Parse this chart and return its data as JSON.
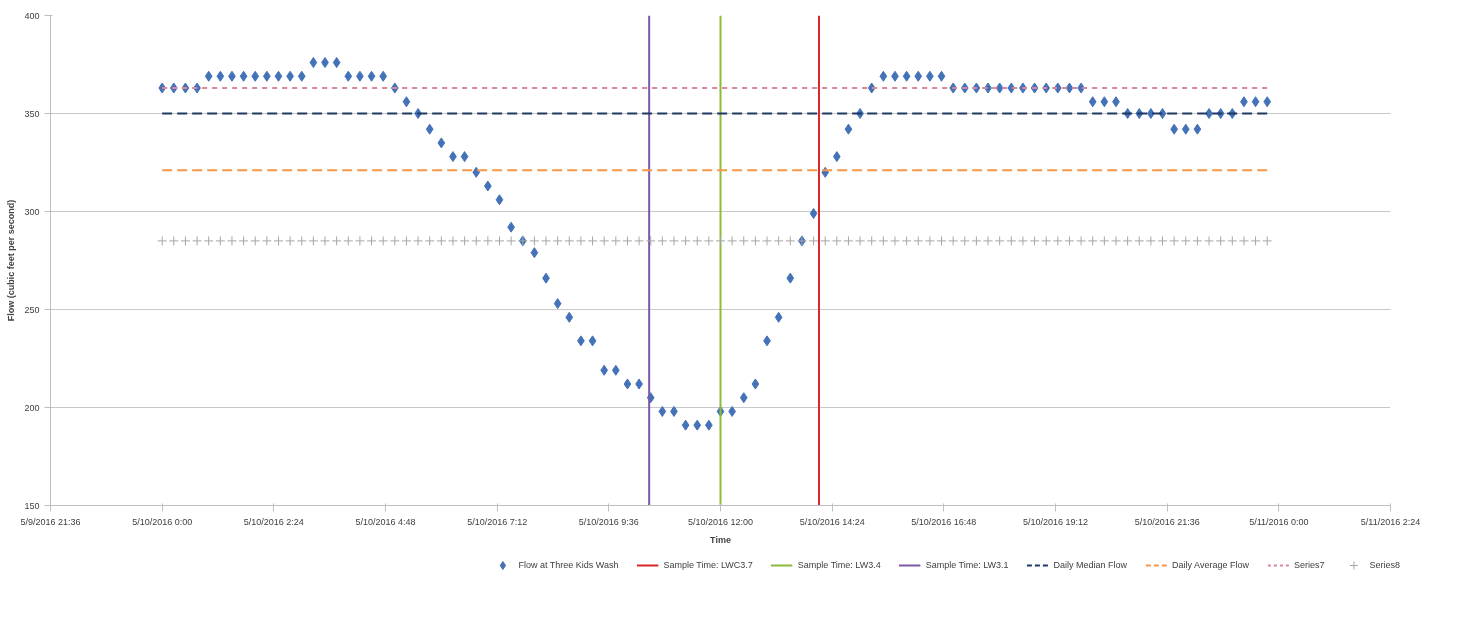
{
  "chart_data": {
    "type": "scatter",
    "xlabel": "Time",
    "ylabel": "Flow (cubic feet per second)",
    "xlim": [
      "2016-05-09T21:36",
      "2016-05-11T02:24"
    ],
    "xticks": [
      {
        "value": "2016-05-09T21:36",
        "label": "5/9/2016 21:36"
      },
      {
        "value": "2016-05-10T00:00",
        "label": "5/10/2016 0:00"
      },
      {
        "value": "2016-05-10T02:24",
        "label": "5/10/2016 2:24"
      },
      {
        "value": "2016-05-10T04:48",
        "label": "5/10/2016 4:48"
      },
      {
        "value": "2016-05-10T07:12",
        "label": "5/10/2016 7:12"
      },
      {
        "value": "2016-05-10T09:36",
        "label": "5/10/2016 9:36"
      },
      {
        "value": "2016-05-10T12:00",
        "label": "5/10/2016 12:00"
      },
      {
        "value": "2016-05-10T14:24",
        "label": "5/10/2016 14:24"
      },
      {
        "value": "2016-05-10T16:48",
        "label": "5/10/2016 16:48"
      },
      {
        "value": "2016-05-10T19:12",
        "label": "5/10/2016 19:12"
      },
      {
        "value": "2016-05-10T21:36",
        "label": "5/10/2016 21:36"
      },
      {
        "value": "2016-05-11T00:00",
        "label": "5/11/2016 0:00"
      },
      {
        "value": "2016-05-11T02:24",
        "label": "5/11/2016 2:24"
      }
    ],
    "ylim": [
      150,
      400
    ],
    "yticks": [
      150,
      200,
      250,
      300,
      350,
      400
    ],
    "grid": "y",
    "legend": "bottom",
    "x": [
      "2016-05-10T00:00",
      "2016-05-10T00:15",
      "2016-05-10T00:30",
      "2016-05-10T00:45",
      "2016-05-10T01:00",
      "2016-05-10T01:15",
      "2016-05-10T01:30",
      "2016-05-10T01:45",
      "2016-05-10T02:00",
      "2016-05-10T02:15",
      "2016-05-10T02:30",
      "2016-05-10T02:45",
      "2016-05-10T03:00",
      "2016-05-10T03:15",
      "2016-05-10T03:30",
      "2016-05-10T03:45",
      "2016-05-10T04:00",
      "2016-05-10T04:15",
      "2016-05-10T04:30",
      "2016-05-10T04:45",
      "2016-05-10T05:00",
      "2016-05-10T05:15",
      "2016-05-10T05:30",
      "2016-05-10T05:45",
      "2016-05-10T06:00",
      "2016-05-10T06:15",
      "2016-05-10T06:30",
      "2016-05-10T06:45",
      "2016-05-10T07:00",
      "2016-05-10T07:15",
      "2016-05-10T07:30",
      "2016-05-10T07:45",
      "2016-05-10T08:00",
      "2016-05-10T08:15",
      "2016-05-10T08:30",
      "2016-05-10T08:45",
      "2016-05-10T09:00",
      "2016-05-10T09:15",
      "2016-05-10T09:30",
      "2016-05-10T09:45",
      "2016-05-10T10:00",
      "2016-05-10T10:15",
      "2016-05-10T10:30",
      "2016-05-10T10:45",
      "2016-05-10T11:00",
      "2016-05-10T11:15",
      "2016-05-10T11:30",
      "2016-05-10T11:45",
      "2016-05-10T12:00",
      "2016-05-10T12:15",
      "2016-05-10T12:30",
      "2016-05-10T12:45",
      "2016-05-10T13:00",
      "2016-05-10T13:15",
      "2016-05-10T13:30",
      "2016-05-10T13:45",
      "2016-05-10T14:00",
      "2016-05-10T14:15",
      "2016-05-10T14:30",
      "2016-05-10T14:45",
      "2016-05-10T15:00",
      "2016-05-10T15:15",
      "2016-05-10T15:30",
      "2016-05-10T15:45",
      "2016-05-10T16:00",
      "2016-05-10T16:15",
      "2016-05-10T16:30",
      "2016-05-10T16:45",
      "2016-05-10T17:00",
      "2016-05-10T17:15",
      "2016-05-10T17:30",
      "2016-05-10T17:45",
      "2016-05-10T18:00",
      "2016-05-10T18:15",
      "2016-05-10T18:30",
      "2016-05-10T18:45",
      "2016-05-10T19:00",
      "2016-05-10T19:15",
      "2016-05-10T19:30",
      "2016-05-10T19:45",
      "2016-05-10T20:00",
      "2016-05-10T20:15",
      "2016-05-10T20:30",
      "2016-05-10T20:45",
      "2016-05-10T21:00",
      "2016-05-10T21:15",
      "2016-05-10T21:30",
      "2016-05-10T21:45",
      "2016-05-10T22:00",
      "2016-05-10T22:15",
      "2016-05-10T22:30",
      "2016-05-10T22:45",
      "2016-05-10T23:00",
      "2016-05-10T23:15",
      "2016-05-10T23:30",
      "2016-05-10T23:45"
    ],
    "series": [
      {
        "name": "Flow at Three Kids Wash",
        "marker": "diamond",
        "color": "#4472b8",
        "values": [
          363,
          363,
          363,
          363,
          369,
          369,
          369,
          369,
          369,
          369,
          369,
          369,
          369,
          376,
          376,
          376,
          369,
          369,
          369,
          369,
          363,
          356,
          350,
          342,
          335,
          328,
          328,
          320,
          313,
          306,
          292,
          285,
          279,
          266,
          253,
          246,
          234,
          234,
          219,
          219,
          212,
          212,
          205,
          198,
          198,
          191,
          191,
          191,
          198,
          198,
          205,
          212,
          234,
          246,
          266,
          285,
          299,
          320,
          328,
          342,
          350,
          363,
          369,
          369,
          369,
          369,
          369,
          369,
          363,
          363,
          363,
          363,
          363,
          363,
          363,
          363,
          363,
          363,
          363,
          363,
          356,
          356,
          356,
          350,
          350,
          350,
          350,
          342,
          342,
          342,
          350,
          350,
          350,
          356,
          356,
          356
        ]
      },
      {
        "name": "Sample Time: LWC3.7",
        "type": "line",
        "marker": "none",
        "line_style": "solid",
        "color": "#d9262b",
        "x": [
          "2016-05-10T14:07",
          "2016-05-10T14:07"
        ],
        "values": [
          150,
          400
        ]
      },
      {
        "name": "Sample Time: LW3.4",
        "type": "line",
        "marker": "none",
        "line_style": "solid",
        "color": "#8cbb3c",
        "x": [
          "2016-05-10T12:00",
          "2016-05-10T12:00"
        ],
        "values": [
          150,
          400
        ]
      },
      {
        "name": "Sample Time: LW3.1",
        "type": "line",
        "marker": "none",
        "line_style": "solid",
        "color": "#7a5aa6",
        "x": [
          "2016-05-10T10:28",
          "2016-05-10T10:28"
        ],
        "values": [
          150,
          400
        ]
      },
      {
        "name": "Daily Median Flow",
        "type": "line",
        "marker": "none",
        "line_style": "dashed",
        "color": "#1f3864",
        "x": [
          "2016-05-10T00:00",
          "2016-05-10T23:45"
        ],
        "values": [
          350,
          350
        ]
      },
      {
        "name": "Daily Average Flow",
        "type": "line",
        "marker": "none",
        "line_style": "dashed",
        "color": "#f79646",
        "x": [
          "2016-05-10T00:00",
          "2016-05-10T23:45"
        ],
        "values": [
          321,
          321
        ]
      },
      {
        "name": "Series7",
        "type": "line",
        "marker": "none",
        "line_style": "dotted",
        "color": "#d9879a",
        "x": [
          "2016-05-10T00:00",
          "2016-05-10T23:45"
        ],
        "values": [
          363,
          363
        ]
      },
      {
        "name": "Series8",
        "marker": "cross",
        "color": "#a6a6a6",
        "values": [
          285,
          285,
          285,
          285,
          285,
          285,
          285,
          285,
          285,
          285,
          285,
          285,
          285,
          285,
          285,
          285,
          285,
          285,
          285,
          285,
          285,
          285,
          285,
          285,
          285,
          285,
          285,
          285,
          285,
          285,
          285,
          285,
          285,
          285,
          285,
          285,
          285,
          285,
          285,
          285,
          285,
          285,
          285,
          285,
          285,
          285,
          285,
          285,
          285,
          285,
          285,
          285,
          285,
          285,
          285,
          285,
          285,
          285,
          285,
          285,
          285,
          285,
          285,
          285,
          285,
          285,
          285,
          285,
          285,
          285,
          285,
          285,
          285,
          285,
          285,
          285,
          285,
          285,
          285,
          285,
          285,
          285,
          285,
          285,
          285,
          285,
          285,
          285,
          285,
          285,
          285,
          285,
          285,
          285,
          285,
          285
        ]
      }
    ]
  }
}
